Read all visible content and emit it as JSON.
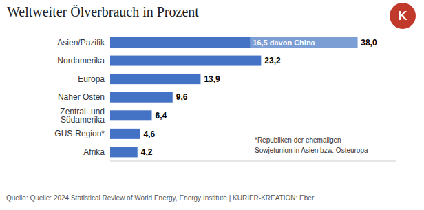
{
  "chart_data": {
    "type": "bar",
    "orientation": "horizontal",
    "title": "Weltweiter Ölverbrauch in Prozent",
    "categories": [
      "Asien/Pazifik",
      "Nordamerika",
      "Europa",
      "Naher Osten",
      "Zentral- und Südamerika",
      "GUS-Region*",
      "Afrika"
    ],
    "values": [
      38.0,
      23.2,
      13.9,
      9.6,
      6.4,
      4.6,
      4.2
    ],
    "value_labels": [
      "38,0",
      "23,2",
      "13,9",
      "9,6",
      "6,4",
      "4,6",
      "4,2"
    ],
    "data_labels": true,
    "color": "#4472C4",
    "xlim": [
      0,
      44
    ],
    "grid": false,
    "tick_labels": "y",
    "annotations": [
      {
        "text": "16,5 davon China",
        "category": "Asien/Pazifik",
        "value": 16.5,
        "color": "#7B9FD4"
      }
    ],
    "footnote": [
      "*Republiken der ehemaligen",
      "Sowjetunion in Asien bzw. Osteuropa"
    ],
    "source": "Quelle: Quelle: 2024 Statistical Review of World Energy, Energy Institute | KURIER-KREATION: Eber",
    "logo": {
      "text": "K",
      "color": "#c0392b"
    }
  }
}
